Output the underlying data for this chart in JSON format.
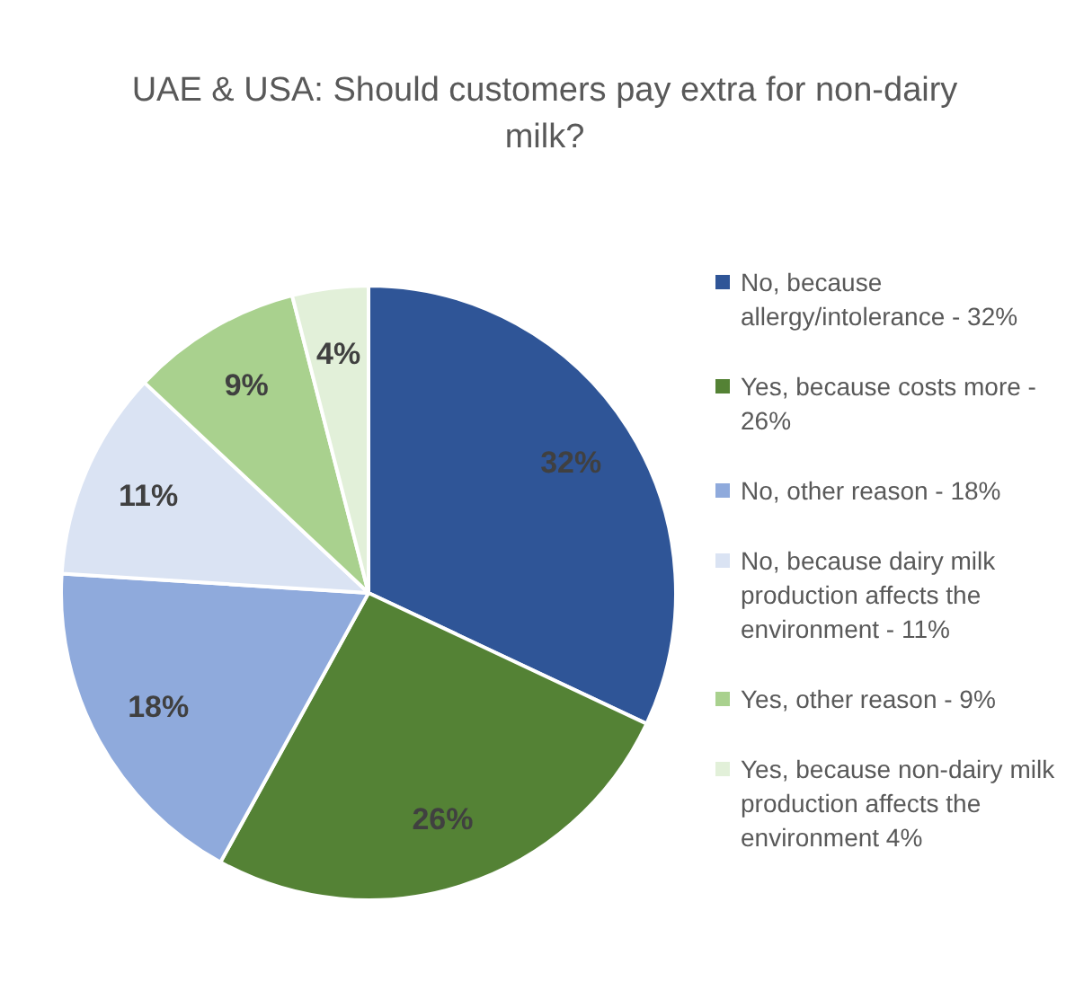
{
  "chart_data": {
    "type": "pie",
    "title": "UAE & USA: Should customers pay extra for non-dairy milk?",
    "categories": [
      "No, because allergy/intolerance - 32%",
      "Yes, because costs more - 26%",
      "No, other reason - 18%",
      "No, because dairy milk production affects the environment - 11%",
      "Yes, other reason - 9%",
      "Yes, because non-dairy milk production affects the environment 4%"
    ],
    "values": [
      32,
      26,
      18,
      11,
      9,
      4
    ],
    "colors": [
      "#2f5597",
      "#548235",
      "#8faadc",
      "#dae3f3",
      "#a9d18e",
      "#e2f0d9"
    ],
    "value_labels": [
      "32%",
      "26%",
      "18%",
      "11%",
      "9%",
      "4%"
    ],
    "legend": "right"
  }
}
